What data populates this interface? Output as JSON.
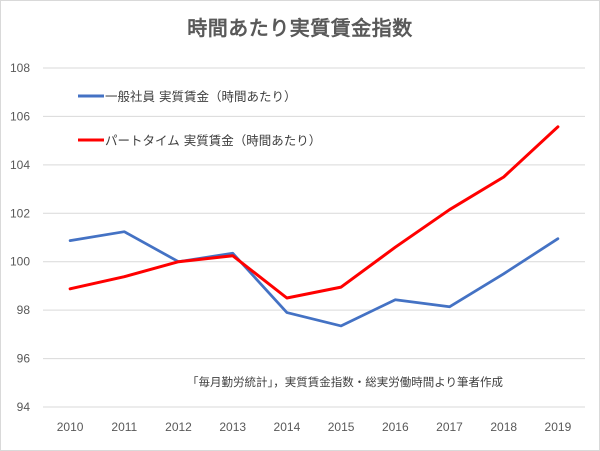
{
  "chart_data": {
    "type": "line",
    "title": "時間あたり実質賃金指数",
    "xlabel": "",
    "ylabel": "",
    "categories": [
      "2010",
      "2011",
      "2012",
      "2013",
      "2014",
      "2015",
      "2016",
      "2017",
      "2018",
      "2019"
    ],
    "ylim": [
      94,
      108
    ],
    "yticks": [
      "94",
      "96",
      "98",
      "100",
      "102",
      "104",
      "106",
      "108"
    ],
    "grid": true,
    "legend_position": "top-left",
    "series": [
      {
        "name": "一般社員 実質賃金（時間あたり）",
        "color": "#4472c4",
        "values": [
          100.87,
          101.24,
          100.0,
          100.35,
          97.9,
          97.35,
          98.43,
          98.14,
          99.5,
          100.95
        ]
      },
      {
        "name": "パートタイム 実質賃金（時間あたり）",
        "color": "#ff0000",
        "values": [
          98.88,
          99.38,
          100.0,
          100.25,
          98.5,
          98.95,
          100.6,
          102.15,
          103.5,
          105.57
        ]
      }
    ],
    "annotation": "「毎月勤労統計」，実質賃金指数・総実労働時間より筆者作成"
  },
  "colors": {
    "grid": "#d9d9d9",
    "text": "#595959",
    "border": "#d9d9d9"
  }
}
